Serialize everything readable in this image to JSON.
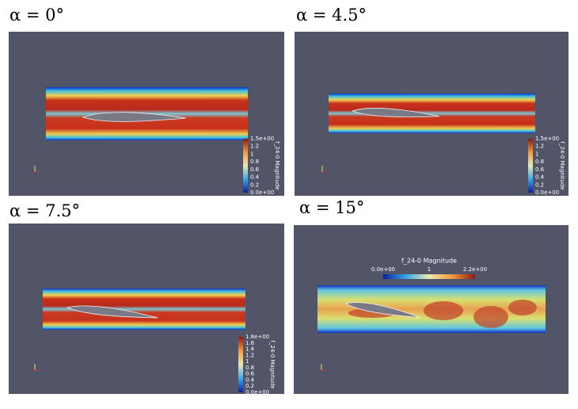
{
  "panels": [
    {
      "title": "α = 0°",
      "colorbar": {
        "label": "f_24-0 Magnitude",
        "ticks": [
          "1.5e+00",
          "1.2",
          "1",
          "0.8",
          "0.6",
          "0.4",
          "0.2",
          "0.0e+00"
        ]
      }
    },
    {
      "title": "α = 4.5°",
      "colorbar": {
        "label": "f_24-0 Magnitude",
        "ticks": [
          "1.5e+00",
          "1.2",
          "1",
          "0.8",
          "0.6",
          "0.4",
          "0.2",
          "0.0e+00"
        ]
      }
    },
    {
      "title": "α = 7.5°",
      "colorbar": {
        "label": "f_24-0 Magnitude",
        "ticks": [
          "1.8e+00",
          "1.6",
          "1.4",
          "1.2",
          "1",
          "0.8",
          "0.6",
          "0.4",
          "0.2",
          "0.0e+00"
        ]
      }
    },
    {
      "title": "α = 15°",
      "colorbar": {
        "label": "f_24-0 Magnitude",
        "ticks": [
          "0.0e+00",
          "1",
          "2.2e+00"
        ]
      }
    }
  ]
}
